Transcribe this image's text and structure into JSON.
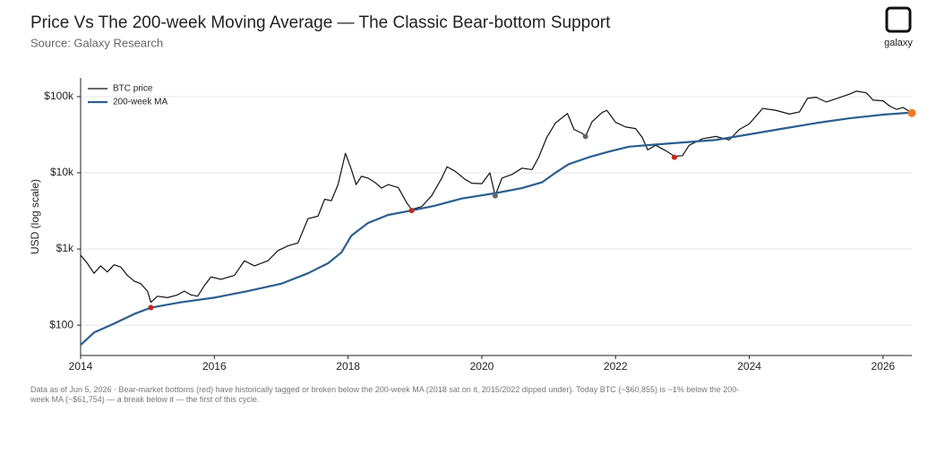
{
  "chart_data": {
    "type": "line",
    "title": "Price Vs The 200-week Moving Average — The Classic Bear-bottom Support",
    "subtitle": "Source: Galaxy Research",
    "brand": "galaxy",
    "y_label": "USD (log scale)",
    "note": "Data as of Jun 5, 2026 · Bear-market bottoms (red) have historically tagged or broken below the 200-week MA (2018 sat on it, 2015/2022 dipped under). Today BTC (~$60,855) is ~1% below the 200-week MA (~$61,754) — a break below it — the first of this cycle.",
    "log_y": true,
    "grid": true,
    "legend": "upper left",
    "xlim": [
      2014,
      2026.43
    ],
    "xticks": [
      2014,
      2016,
      2018,
      2020,
      2022,
      2024,
      2026
    ],
    "ylim": [
      40,
      176000
    ],
    "yticks": [
      {
        "value": 100,
        "label": "$100"
      },
      {
        "value": 1000,
        "label": "$1k"
      },
      {
        "value": 10000,
        "label": "$10k"
      },
      {
        "value": 100000,
        "label": "$100k"
      }
    ],
    "series": [
      {
        "name": "BTC price",
        "color": "#111111",
        "width": 1.2,
        "x": [
          2014.0,
          2014.1,
          2014.2,
          2014.3,
          2014.4,
          2014.5,
          2014.6,
          2014.7,
          2014.8,
          2014.9,
          2015.0,
          2015.05,
          2015.15,
          2015.3,
          2015.45,
          2015.55,
          2015.65,
          2015.75,
          2015.85,
          2015.95,
          2016.1,
          2016.3,
          2016.45,
          2016.6,
          2016.8,
          2016.95,
          2017.1,
          2017.25,
          2017.4,
          2017.55,
          2017.65,
          2017.75,
          2017.85,
          2017.96,
          2018.05,
          2018.12,
          2018.2,
          2018.3,
          2018.4,
          2018.5,
          2018.6,
          2018.75,
          2018.88,
          2018.95,
          2019.1,
          2019.25,
          2019.4,
          2019.48,
          2019.6,
          2019.75,
          2019.85,
          2020.0,
          2020.12,
          2020.2,
          2020.3,
          2020.45,
          2020.6,
          2020.75,
          2020.85,
          2020.97,
          2021.1,
          2021.28,
          2021.38,
          2021.5,
          2021.55,
          2021.65,
          2021.8,
          2021.87,
          2022.0,
          2022.15,
          2022.3,
          2022.4,
          2022.48,
          2022.6,
          2022.75,
          2022.88,
          2023.0,
          2023.1,
          2023.3,
          2023.5,
          2023.7,
          2023.85,
          2024.0,
          2024.2,
          2024.4,
          2024.6,
          2024.75,
          2024.87,
          2025.0,
          2025.15,
          2025.3,
          2025.5,
          2025.6,
          2025.75,
          2025.85,
          2026.0,
          2026.1,
          2026.2,
          2026.3,
          2026.43
        ],
        "values": [
          830,
          650,
          480,
          600,
          500,
          620,
          580,
          450,
          380,
          350,
          280,
          200,
          240,
          230,
          250,
          280,
          250,
          240,
          330,
          430,
          400,
          450,
          700,
          600,
          700,
          950,
          1100,
          1200,
          2500,
          2700,
          4500,
          4300,
          7000,
          18000,
          11000,
          7000,
          9000,
          8500,
          7500,
          6300,
          7000,
          6400,
          4000,
          3300,
          3600,
          5000,
          8500,
          12000,
          10500,
          8200,
          7300,
          7200,
          10000,
          5000,
          8500,
          9500,
          11500,
          11000,
          16000,
          29000,
          45000,
          60000,
          37000,
          33000,
          30000,
          47000,
          62000,
          66000,
          46000,
          40000,
          38000,
          29000,
          20000,
          23000,
          19500,
          16500,
          16800,
          23000,
          28000,
          30000,
          27000,
          37000,
          44000,
          70000,
          66000,
          59000,
          63000,
          95000,
          98000,
          85000,
          94000,
          108000,
          118000,
          112000,
          90000,
          88000,
          75000,
          68000,
          72000,
          60855
        ]
      },
      {
        "name": "200-week MA",
        "color": "#2b5f8f",
        "width": 2.2,
        "x": [
          2014.0,
          2014.2,
          2014.5,
          2014.8,
          2015.05,
          2015.5,
          2016.0,
          2016.5,
          2017.0,
          2017.4,
          2017.7,
          2017.9,
          2018.05,
          2018.3,
          2018.6,
          2018.95,
          2019.3,
          2019.7,
          2020.2,
          2020.6,
          2020.9,
          2021.1,
          2021.3,
          2021.6,
          2021.9,
          2022.2,
          2022.6,
          2023.0,
          2023.5,
          2024.0,
          2024.5,
          2025.0,
          2025.5,
          2026.0,
          2026.43
        ],
        "values": [
          55,
          80,
          105,
          140,
          170,
          200,
          230,
          280,
          350,
          480,
          650,
          900,
          1500,
          2200,
          2800,
          3200,
          3700,
          4600,
          5400,
          6300,
          7500,
          10000,
          13000,
          16000,
          19000,
          22000,
          23500,
          25000,
          27000,
          32000,
          38000,
          45000,
          52000,
          58000,
          61754
        ]
      }
    ],
    "highlights": {
      "x": [
        2015.05,
        2018.95,
        2020.2,
        2021.55,
        2022.88,
        2026.43
      ],
      "values": [
        170,
        3200,
        5000,
        30000,
        16000,
        60855
      ],
      "colors": [
        "#c0281f",
        "#c0281f",
        "#666666",
        "#666666",
        "#c0281f",
        "#f07a2a"
      ]
    }
  }
}
